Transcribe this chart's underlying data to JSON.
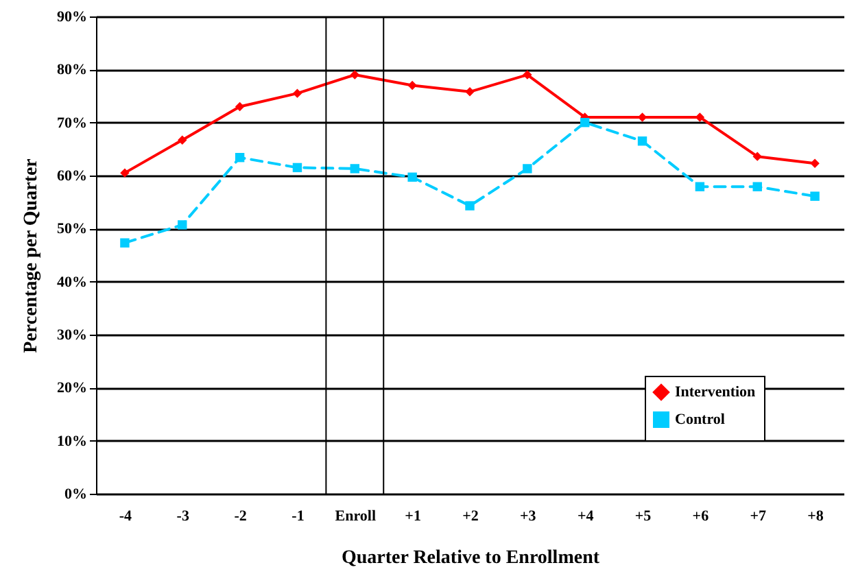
{
  "chart_data": {
    "type": "line",
    "xlabel": "Quarter Relative to Enrollment",
    "ylabel": "Percentage per Quarter",
    "x": [
      -4,
      -3,
      -2,
      -1,
      0,
      1,
      2,
      3,
      4,
      5,
      6,
      7,
      8
    ],
    "xlim": [
      -4.5,
      8.5
    ],
    "xticks": [
      -4,
      -3,
      -2,
      -1,
      {
        "value": 0,
        "label": "Enroll"
      },
      {
        "value": 1,
        "label": "+1"
      },
      {
        "value": 2,
        "label": "+2"
      },
      {
        "value": 3,
        "label": "+3"
      },
      {
        "value": 4,
        "label": "+4"
      },
      {
        "value": 5,
        "label": "+5"
      },
      {
        "value": 6,
        "label": "+6"
      },
      {
        "value": 7,
        "label": "+7"
      },
      {
        "value": 8,
        "label": "+8"
      }
    ],
    "ylim": [
      0,
      90
    ],
    "yticks": [
      {
        "value": 0,
        "label": "0%"
      },
      {
        "value": 10,
        "label": "10%"
      },
      {
        "value": 20,
        "label": "20%"
      },
      {
        "value": 30,
        "label": "30%"
      },
      {
        "value": 40,
        "label": "40%"
      },
      {
        "value": 50,
        "label": "50%"
      },
      {
        "value": 60,
        "label": "60%"
      },
      {
        "value": 70,
        "label": "70%"
      },
      {
        "value": 80,
        "label": "80%"
      },
      {
        "value": 90,
        "label": "90%"
      }
    ],
    "grid": "y",
    "legend": "bottom right",
    "ref_lines": [
      {
        "axis": "x",
        "value": -0.5,
        "color": "#000000"
      },
      {
        "axis": "x",
        "value": 0.5,
        "color": "#000000"
      }
    ],
    "series": [
      {
        "name": "Intervention",
        "color": "#ff0000",
        "marker": "diamond",
        "line_style": "solid",
        "values": [
          60.5,
          66.7,
          73,
          75.5,
          79,
          77,
          75.8,
          79,
          71,
          71,
          71,
          63.6,
          62.3
        ]
      },
      {
        "name": "Control",
        "color": "#00ccff",
        "marker": "square",
        "line_style": "dashed",
        "values": [
          47.3,
          50.7,
          63.4,
          61.5,
          61.3,
          59.7,
          54.3,
          61.3,
          70,
          66.5,
          57.9,
          57.9,
          56.1
        ]
      }
    ]
  }
}
